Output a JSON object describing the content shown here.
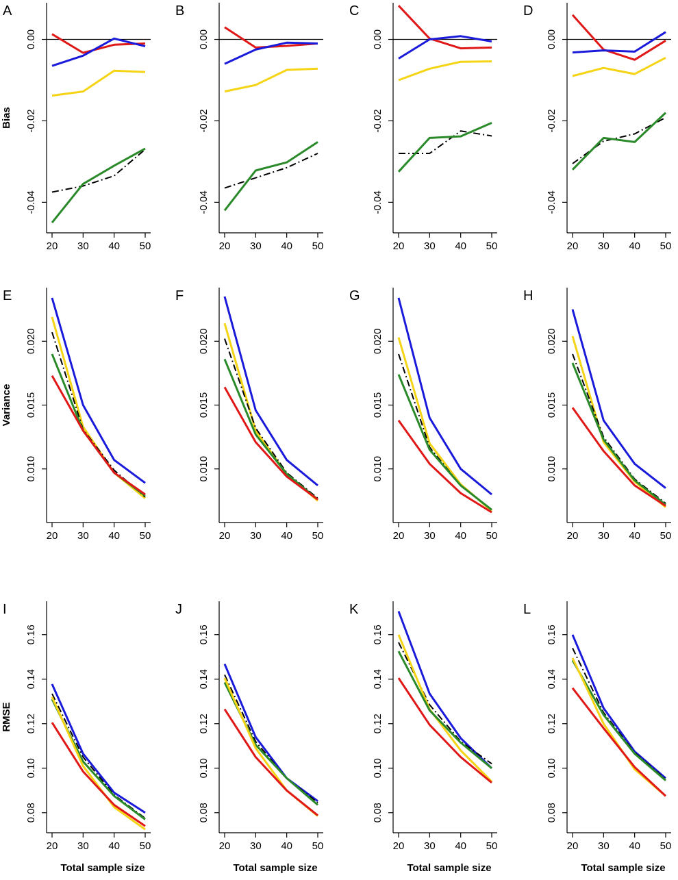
{
  "figure": {
    "xlabel": "Total sample size",
    "row_ylabels": [
      "Bias",
      "Variance",
      "RMSE"
    ],
    "colors": {
      "blue": "#1a1adb",
      "red": "#e01818",
      "yellow": "#f5d416",
      "green": "#2a8a2a",
      "black": "#000000"
    }
  },
  "chart_data": [
    {
      "panel": "A",
      "type": "line",
      "ylabel": "Bias",
      "x": [
        20,
        30,
        40,
        50
      ],
      "xticks": [
        20,
        30,
        40,
        50
      ],
      "ylim": [
        -0.0475,
        0.009
      ],
      "yticks": [
        -0.04,
        -0.02,
        0.0
      ],
      "ytick_labels": [
        "-0.04",
        "-0.02",
        "0.00"
      ],
      "hline": 0,
      "series": [
        {
          "color": "red",
          "style": "solid",
          "values": [
            0.0013,
            -0.0033,
            -0.0013,
            -0.001
          ]
        },
        {
          "color": "blue",
          "style": "solid",
          "values": [
            -0.0065,
            -0.004,
            0.0002,
            -0.0017
          ]
        },
        {
          "color": "yellow",
          "style": "solid",
          "values": [
            -0.0138,
            -0.0128,
            -0.0077,
            -0.008
          ]
        },
        {
          "color": "black",
          "style": "dashdot",
          "values": [
            -0.0375,
            -0.036,
            -0.0335,
            -0.027
          ]
        },
        {
          "color": "green",
          "style": "solid",
          "values": [
            -0.045,
            -0.0355,
            -0.031,
            -0.0268
          ]
        }
      ]
    },
    {
      "panel": "B",
      "type": "line",
      "ylabel": "",
      "x": [
        20,
        30,
        40,
        50
      ],
      "xticks": [
        20,
        30,
        40,
        50
      ],
      "ylim": [
        -0.0475,
        0.009
      ],
      "yticks": [
        -0.04,
        -0.02,
        0.0
      ],
      "ytick_labels": [
        "-0.04",
        "-0.02",
        "0.00"
      ],
      "hline": 0,
      "series": [
        {
          "color": "red",
          "style": "solid",
          "values": [
            0.003,
            -0.002,
            -0.0016,
            -0.001
          ]
        },
        {
          "color": "blue",
          "style": "solid",
          "values": [
            -0.006,
            -0.0025,
            -0.0008,
            -0.001
          ]
        },
        {
          "color": "yellow",
          "style": "solid",
          "values": [
            -0.0128,
            -0.0112,
            -0.0075,
            -0.0072
          ]
        },
        {
          "color": "black",
          "style": "dashdot",
          "values": [
            -0.0365,
            -0.034,
            -0.0315,
            -0.028
          ]
        },
        {
          "color": "green",
          "style": "solid",
          "values": [
            -0.042,
            -0.0322,
            -0.0302,
            -0.0252
          ]
        }
      ]
    },
    {
      "panel": "C",
      "type": "line",
      "ylabel": "",
      "x": [
        20,
        30,
        40,
        50
      ],
      "xticks": [
        20,
        30,
        40,
        50
      ],
      "ylim": [
        -0.0475,
        0.009
      ],
      "yticks": [
        -0.04,
        -0.02,
        0.0
      ],
      "ytick_labels": [
        "-0.04",
        "-0.02",
        "0.00"
      ],
      "hline": 0,
      "series": [
        {
          "color": "red",
          "style": "solid",
          "values": [
            0.0083,
            0.0002,
            -0.0022,
            -0.002
          ]
        },
        {
          "color": "blue",
          "style": "solid",
          "values": [
            -0.0047,
            0.0,
            0.0008,
            -0.0005
          ]
        },
        {
          "color": "yellow",
          "style": "solid",
          "values": [
            -0.01,
            -0.0072,
            -0.0055,
            -0.0054
          ]
        },
        {
          "color": "black",
          "style": "dashdot",
          "values": [
            -0.028,
            -0.028,
            -0.0225,
            -0.0237
          ]
        },
        {
          "color": "green",
          "style": "solid",
          "values": [
            -0.0325,
            -0.0242,
            -0.0238,
            -0.0205
          ]
        }
      ]
    },
    {
      "panel": "D",
      "type": "line",
      "ylabel": "",
      "x": [
        20,
        30,
        40,
        50
      ],
      "xticks": [
        20,
        30,
        40,
        50
      ],
      "ylim": [
        -0.0475,
        0.009
      ],
      "yticks": [
        -0.04,
        -0.02,
        0.0
      ],
      "ytick_labels": [
        "-0.04",
        "-0.02",
        "0.00"
      ],
      "hline": 0,
      "series": [
        {
          "color": "red",
          "style": "solid",
          "values": [
            0.006,
            -0.0025,
            -0.005,
            -0.0003
          ]
        },
        {
          "color": "blue",
          "style": "solid",
          "values": [
            -0.0032,
            -0.0027,
            -0.003,
            0.0018
          ]
        },
        {
          "color": "yellow",
          "style": "solid",
          "values": [
            -0.009,
            -0.007,
            -0.0085,
            -0.0045
          ]
        },
        {
          "color": "black",
          "style": "dashdot",
          "values": [
            -0.0305,
            -0.025,
            -0.0232,
            -0.0192
          ]
        },
        {
          "color": "green",
          "style": "solid",
          "values": [
            -0.032,
            -0.0242,
            -0.0252,
            -0.018
          ]
        }
      ]
    },
    {
      "panel": "E",
      "type": "line",
      "ylabel": "Variance",
      "x": [
        20,
        30,
        40,
        50
      ],
      "xticks": [
        20,
        30,
        40,
        50
      ],
      "ylim": [
        0.0058,
        0.0242
      ],
      "yticks": [
        0.01,
        0.015,
        0.02
      ],
      "ytick_labels": [
        "0.010",
        "0.015",
        "0.020"
      ],
      "series": [
        {
          "color": "blue",
          "style": "solid",
          "values": [
            0.0234,
            0.015,
            0.0107,
            0.0089
          ]
        },
        {
          "color": "yellow",
          "style": "solid",
          "values": [
            0.0219,
            0.0133,
            0.0097,
            0.0077
          ]
        },
        {
          "color": "black",
          "style": "dashdot",
          "values": [
            0.0207,
            0.0131,
            0.0099,
            0.0078
          ]
        },
        {
          "color": "green",
          "style": "solid",
          "values": [
            0.019,
            0.013,
            0.0097,
            0.0079
          ]
        },
        {
          "color": "red",
          "style": "solid",
          "values": [
            0.0173,
            0.013,
            0.0097,
            0.008
          ]
        }
      ]
    },
    {
      "panel": "F",
      "type": "line",
      "ylabel": "",
      "x": [
        20,
        30,
        40,
        50
      ],
      "xticks": [
        20,
        30,
        40,
        50
      ],
      "ylim": [
        0.0058,
        0.0242
      ],
      "yticks": [
        0.01,
        0.015,
        0.02
      ],
      "ytick_labels": [
        "0.010",
        "0.015",
        "0.020"
      ],
      "series": [
        {
          "color": "blue",
          "style": "solid",
          "values": [
            0.0235,
            0.0146,
            0.0107,
            0.0087
          ]
        },
        {
          "color": "yellow",
          "style": "solid",
          "values": [
            0.0214,
            0.013,
            0.0096,
            0.0075
          ]
        },
        {
          "color": "black",
          "style": "dashdot",
          "values": [
            0.0202,
            0.0132,
            0.0097,
            0.0077
          ]
        },
        {
          "color": "green",
          "style": "solid",
          "values": [
            0.0186,
            0.0127,
            0.0096,
            0.0076
          ]
        },
        {
          "color": "red",
          "style": "solid",
          "values": [
            0.0164,
            0.0121,
            0.0094,
            0.0076
          ]
        }
      ]
    },
    {
      "panel": "G",
      "type": "line",
      "ylabel": "",
      "x": [
        20,
        30,
        40,
        50
      ],
      "xticks": [
        20,
        30,
        40,
        50
      ],
      "ylim": [
        0.0058,
        0.0242
      ],
      "yticks": [
        0.01,
        0.015,
        0.02
      ],
      "ytick_labels": [
        "0.010",
        "0.015",
        "0.020"
      ],
      "series": [
        {
          "color": "blue",
          "style": "solid",
          "values": [
            0.0234,
            0.014,
            0.01,
            0.008
          ]
        },
        {
          "color": "yellow",
          "style": "solid",
          "values": [
            0.0203,
            0.012,
            0.0088,
            0.0067
          ]
        },
        {
          "color": "black",
          "style": "dashdot",
          "values": [
            0.019,
            0.0117,
            0.0087,
            0.0068
          ]
        },
        {
          "color": "green",
          "style": "solid",
          "values": [
            0.0174,
            0.0115,
            0.0087,
            0.0068
          ]
        },
        {
          "color": "red",
          "style": "solid",
          "values": [
            0.0138,
            0.0104,
            0.0081,
            0.0066
          ]
        }
      ]
    },
    {
      "panel": "H",
      "type": "line",
      "ylabel": "",
      "x": [
        20,
        30,
        40,
        50
      ],
      "xticks": [
        20,
        30,
        40,
        50
      ],
      "ylim": [
        0.0058,
        0.0242
      ],
      "yticks": [
        0.01,
        0.015,
        0.02
      ],
      "ytick_labels": [
        "0.010",
        "0.015",
        "0.020"
      ],
      "series": [
        {
          "color": "blue",
          "style": "solid",
          "values": [
            0.0225,
            0.0138,
            0.0104,
            0.0085
          ]
        },
        {
          "color": "yellow",
          "style": "solid",
          "values": [
            0.0204,
            0.0121,
            0.009,
            0.007
          ]
        },
        {
          "color": "black",
          "style": "dashdot",
          "values": [
            0.019,
            0.0125,
            0.0092,
            0.0073
          ]
        },
        {
          "color": "green",
          "style": "solid",
          "values": [
            0.0183,
            0.0123,
            0.0091,
            0.0072
          ]
        },
        {
          "color": "red",
          "style": "solid",
          "values": [
            0.0148,
            0.0114,
            0.0087,
            0.0071
          ]
        }
      ]
    },
    {
      "panel": "I",
      "type": "line",
      "ylabel": "RMSE",
      "x": [
        20,
        30,
        40,
        50
      ],
      "xticks": [
        20,
        30,
        40,
        50
      ],
      "ylim": [
        0.071,
        0.175
      ],
      "yticks": [
        0.08,
        0.1,
        0.12,
        0.14,
        0.16
      ],
      "ytick_labels": [
        "0.08",
        "0.10",
        "0.12",
        "0.14",
        "0.16"
      ],
      "series": [
        {
          "color": "blue",
          "style": "solid",
          "values": [
            0.1378,
            0.1065,
            0.089,
            0.08
          ]
        },
        {
          "color": "black",
          "style": "dashdot",
          "values": [
            0.1335,
            0.105,
            0.088,
            0.0775
          ]
        },
        {
          "color": "green",
          "style": "solid",
          "values": [
            0.131,
            0.103,
            0.0875,
            0.077
          ]
        },
        {
          "color": "yellow",
          "style": "solid",
          "values": [
            0.132,
            0.101,
            0.0825,
            0.0725
          ]
        },
        {
          "color": "red",
          "style": "solid",
          "values": [
            0.1205,
            0.0985,
            0.0835,
            0.074
          ]
        }
      ]
    },
    {
      "panel": "J",
      "type": "line",
      "ylabel": "",
      "x": [
        20,
        30,
        40,
        50
      ],
      "xticks": [
        20,
        30,
        40,
        50
      ],
      "ylim": [
        0.071,
        0.175
      ],
      "yticks": [
        0.08,
        0.1,
        0.12,
        0.14,
        0.16
      ],
      "ytick_labels": [
        "0.08",
        "0.10",
        "0.12",
        "0.14",
        "0.16"
      ],
      "series": [
        {
          "color": "blue",
          "style": "solid",
          "values": [
            0.1468,
            0.114,
            0.0955,
            0.0852
          ]
        },
        {
          "color": "black",
          "style": "dashdot",
          "values": [
            0.142,
            0.112,
            0.0955,
            0.0845
          ]
        },
        {
          "color": "green",
          "style": "solid",
          "values": [
            0.1385,
            0.1105,
            0.0955,
            0.0835
          ]
        },
        {
          "color": "yellow",
          "style": "solid",
          "values": [
            0.1405,
            0.109,
            0.09,
            0.0785
          ]
        },
        {
          "color": "red",
          "style": "solid",
          "values": [
            0.1265,
            0.105,
            0.09,
            0.0788
          ]
        }
      ]
    },
    {
      "panel": "K",
      "type": "line",
      "ylabel": "",
      "x": [
        20,
        30,
        40,
        50
      ],
      "xticks": [
        20,
        30,
        40,
        50
      ],
      "ylim": [
        0.071,
        0.175
      ],
      "yticks": [
        0.08,
        0.1,
        0.12,
        0.14,
        0.16
      ],
      "ytick_labels": [
        "0.08",
        "0.10",
        "0.12",
        "0.14",
        "0.16"
      ],
      "series": [
        {
          "color": "blue",
          "style": "solid",
          "values": [
            0.1705,
            0.1335,
            0.1135,
            0.1
          ]
        },
        {
          "color": "black",
          "style": "dashdot",
          "values": [
            0.1565,
            0.1285,
            0.112,
            0.102
          ]
        },
        {
          "color": "yellow",
          "style": "solid",
          "values": [
            0.16,
            0.1265,
            0.108,
            0.094
          ]
        },
        {
          "color": "green",
          "style": "solid",
          "values": [
            0.1525,
            0.126,
            0.1115,
            0.1
          ]
        },
        {
          "color": "red",
          "style": "solid",
          "values": [
            0.1405,
            0.1195,
            0.105,
            0.0935
          ]
        }
      ]
    },
    {
      "panel": "L",
      "type": "line",
      "ylabel": "",
      "x": [
        20,
        30,
        40,
        50
      ],
      "xticks": [
        20,
        30,
        40,
        50
      ],
      "ylim": [
        0.071,
        0.175
      ],
      "yticks": [
        0.08,
        0.1,
        0.12,
        0.14,
        0.16
      ],
      "ytick_labels": [
        "0.08",
        "0.10",
        "0.12",
        "0.14",
        "0.16"
      ],
      "series": [
        {
          "color": "blue",
          "style": "solid",
          "values": [
            0.16,
            0.127,
            0.1075,
            0.0955
          ]
        },
        {
          "color": "black",
          "style": "dashdot",
          "values": [
            0.154,
            0.125,
            0.107,
            0.095
          ]
        },
        {
          "color": "green",
          "style": "solid",
          "values": [
            0.1485,
            0.124,
            0.1065,
            0.0945
          ]
        },
        {
          "color": "yellow",
          "style": "solid",
          "values": [
            0.1495,
            0.12,
            0.0995,
            0.0875
          ]
        },
        {
          "color": "red",
          "style": "solid",
          "values": [
            0.136,
            0.118,
            0.1005,
            0.0875
          ]
        }
      ]
    }
  ]
}
